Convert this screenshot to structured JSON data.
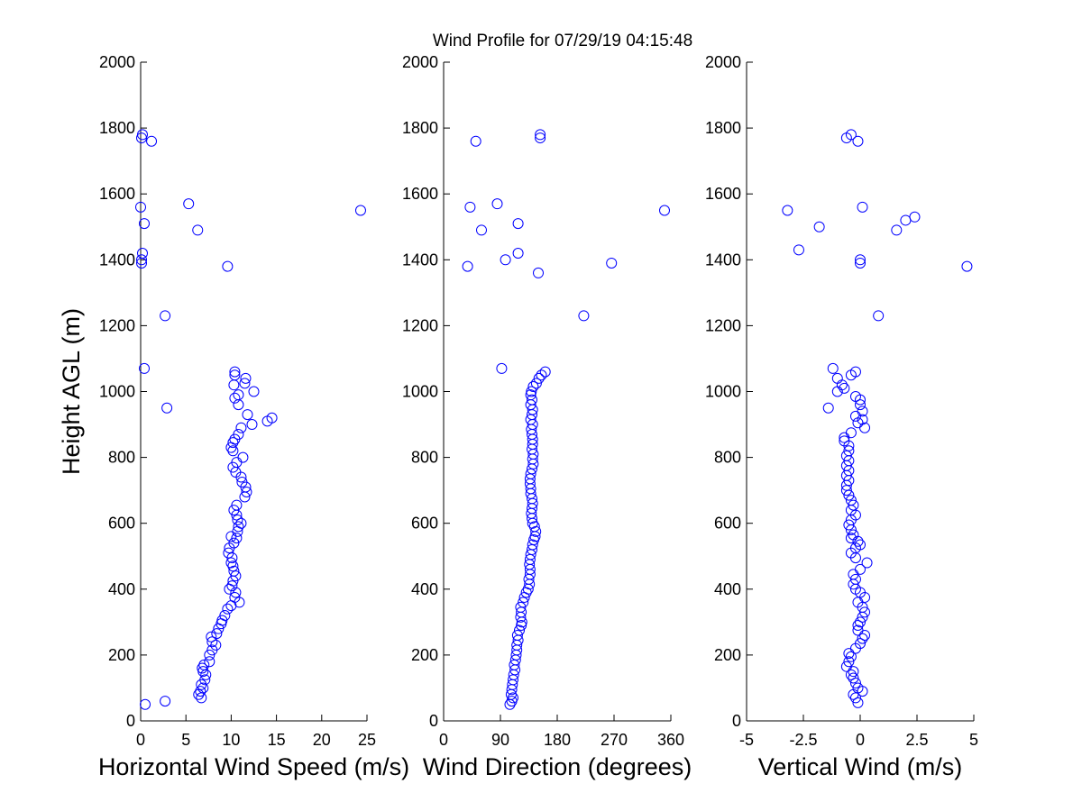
{
  "chart_data": {
    "title": "Wind Profile for  07/29/19 04:15:48",
    "panels": [
      {
        "type": "scatter",
        "xlabel": "Horizontal Wind Speed (m/s)",
        "ylabel": "Height AGL (m)",
        "xlim": [
          0,
          25
        ],
        "ylim": [
          0,
          2000
        ],
        "xticks": [
          0,
          5,
          10,
          15,
          20,
          25
        ],
        "xtick_labels": [
          "0",
          "5",
          "10",
          "15",
          "20",
          "25"
        ],
        "yticks": [
          0,
          200,
          400,
          600,
          800,
          1000,
          1200,
          1400,
          1600,
          1800,
          2000
        ],
        "marker_color": "#0000ff",
        "points": [
          [
            0.5,
            50
          ],
          [
            2.7,
            60
          ],
          [
            6.7,
            70
          ],
          [
            6.4,
            80
          ],
          [
            6.6,
            90
          ],
          [
            6.9,
            100
          ],
          [
            6.7,
            110
          ],
          [
            7.1,
            125
          ],
          [
            7.2,
            140
          ],
          [
            6.9,
            150
          ],
          [
            6.8,
            160
          ],
          [
            7.0,
            170
          ],
          [
            7.6,
            180
          ],
          [
            7.6,
            200
          ],
          [
            7.9,
            215
          ],
          [
            8.3,
            230
          ],
          [
            7.9,
            240
          ],
          [
            7.8,
            255
          ],
          [
            8.4,
            265
          ],
          [
            8.6,
            280
          ],
          [
            8.9,
            295
          ],
          [
            9.0,
            305
          ],
          [
            9.3,
            320
          ],
          [
            9.6,
            340
          ],
          [
            10.0,
            350
          ],
          [
            10.9,
            360
          ],
          [
            10.4,
            375
          ],
          [
            10.5,
            390
          ],
          [
            9.8,
            400
          ],
          [
            10.1,
            410
          ],
          [
            10.2,
            425
          ],
          [
            10.5,
            440
          ],
          [
            10.3,
            455
          ],
          [
            10.2,
            470
          ],
          [
            10.0,
            480
          ],
          [
            10.1,
            495
          ],
          [
            9.7,
            510
          ],
          [
            9.8,
            525
          ],
          [
            10.3,
            540
          ],
          [
            10.6,
            555
          ],
          [
            10.0,
            560
          ],
          [
            10.7,
            575
          ],
          [
            10.8,
            590
          ],
          [
            11.1,
            600
          ],
          [
            10.7,
            610
          ],
          [
            10.6,
            625
          ],
          [
            10.3,
            640
          ],
          [
            10.6,
            655
          ],
          [
            11.5,
            680
          ],
          [
            11.7,
            695
          ],
          [
            11.6,
            710
          ],
          [
            11.2,
            725
          ],
          [
            11.1,
            740
          ],
          [
            10.5,
            755
          ],
          [
            10.2,
            770
          ],
          [
            10.6,
            785
          ],
          [
            11.3,
            800
          ],
          [
            10.2,
            820
          ],
          [
            10.0,
            830
          ],
          [
            10.2,
            845
          ],
          [
            10.4,
            855
          ],
          [
            10.8,
            870
          ],
          [
            11.1,
            890
          ],
          [
            12.3,
            900
          ],
          [
            14.0,
            910
          ],
          [
            14.5,
            920
          ],
          [
            11.8,
            930
          ],
          [
            2.9,
            950
          ],
          [
            10.8,
            960
          ],
          [
            10.4,
            980
          ],
          [
            10.8,
            990
          ],
          [
            12.5,
            1000
          ],
          [
            10.3,
            1020
          ],
          [
            11.5,
            1025
          ],
          [
            11.6,
            1040
          ],
          [
            10.4,
            1050
          ],
          [
            10.4,
            1060
          ],
          [
            0.4,
            1070
          ],
          [
            2.7,
            1230
          ],
          [
            9.6,
            1380
          ],
          [
            0.1,
            1390
          ],
          [
            0.1,
            1400
          ],
          [
            0.2,
            1420
          ],
          [
            6.3,
            1490
          ],
          [
            0.4,
            1510
          ],
          [
            24.3,
            1550
          ],
          [
            0.0,
            1560
          ],
          [
            5.3,
            1570
          ],
          [
            1.2,
            1760
          ],
          [
            0.1,
            1770
          ],
          [
            0.2,
            1780
          ]
        ]
      },
      {
        "type": "scatter",
        "xlabel": "Wind Direction (degrees)",
        "ylabel": "",
        "xlim": [
          0,
          360
        ],
        "ylim": [
          0,
          2000
        ],
        "xticks": [
          0,
          90,
          180,
          270,
          360
        ],
        "xtick_labels": [
          "0",
          "90",
          "180",
          "270",
          "360"
        ],
        "yticks": [
          0,
          200,
          400,
          600,
          800,
          1000,
          1200,
          1400,
          1600,
          1800,
          2000
        ],
        "marker_color": "#0000ff",
        "points": [
          [
            105,
            50
          ],
          [
            108,
            60
          ],
          [
            110,
            70
          ],
          [
            107,
            80
          ],
          [
            108,
            95
          ],
          [
            109,
            110
          ],
          [
            110,
            125
          ],
          [
            111,
            140
          ],
          [
            113,
            155
          ],
          [
            112,
            170
          ],
          [
            114,
            185
          ],
          [
            115,
            200
          ],
          [
            116,
            215
          ],
          [
            116,
            230
          ],
          [
            118,
            245
          ],
          [
            117,
            260
          ],
          [
            120,
            275
          ],
          [
            123,
            290
          ],
          [
            124,
            300
          ],
          [
            122,
            315
          ],
          [
            123,
            330
          ],
          [
            122,
            345
          ],
          [
            126,
            360
          ],
          [
            128,
            375
          ],
          [
            131,
            390
          ],
          [
            134,
            400
          ],
          [
            136,
            415
          ],
          [
            135,
            430
          ],
          [
            137,
            445
          ],
          [
            137,
            460
          ],
          [
            136,
            475
          ],
          [
            137,
            490
          ],
          [
            138,
            505
          ],
          [
            140,
            520
          ],
          [
            141,
            535
          ],
          [
            143,
            550
          ],
          [
            145,
            560
          ],
          [
            146,
            575
          ],
          [
            144,
            590
          ],
          [
            141,
            600
          ],
          [
            140,
            615
          ],
          [
            139,
            630
          ],
          [
            140,
            645
          ],
          [
            141,
            660
          ],
          [
            140,
            675
          ],
          [
            138,
            690
          ],
          [
            138,
            705
          ],
          [
            137,
            720
          ],
          [
            137,
            735
          ],
          [
            138,
            750
          ],
          [
            140,
            765
          ],
          [
            142,
            780
          ],
          [
            141,
            795
          ],
          [
            142,
            810
          ],
          [
            140,
            825
          ],
          [
            141,
            840
          ],
          [
            141,
            855
          ],
          [
            140,
            870
          ],
          [
            139,
            885
          ],
          [
            141,
            900
          ],
          [
            138,
            915
          ],
          [
            140,
            930
          ],
          [
            141,
            945
          ],
          [
            138,
            960
          ],
          [
            140,
            975
          ],
          [
            138,
            990
          ],
          [
            139,
            1000
          ],
          [
            142,
            1015
          ],
          [
            147,
            1025
          ],
          [
            151,
            1040
          ],
          [
            155,
            1050
          ],
          [
            161,
            1060
          ],
          [
            92,
            1070
          ],
          [
            222,
            1230
          ],
          [
            150,
            1360
          ],
          [
            38,
            1380
          ],
          [
            266,
            1390
          ],
          [
            98,
            1400
          ],
          [
            118,
            1420
          ],
          [
            60,
            1490
          ],
          [
            118,
            1510
          ],
          [
            350,
            1550
          ],
          [
            42,
            1560
          ],
          [
            85,
            1570
          ],
          [
            51,
            1760
          ],
          [
            153,
            1770
          ],
          [
            153,
            1780
          ]
        ]
      },
      {
        "type": "scatter",
        "xlabel": "Vertical Wind (m/s)",
        "ylabel": "",
        "xlim": [
          -5,
          5
        ],
        "ylim": [
          0,
          2000
        ],
        "xticks": [
          -5,
          -2.5,
          0,
          2.5,
          5
        ],
        "xtick_labels": [
          "-5",
          "-2.5",
          "0",
          "2.5",
          "5"
        ],
        "yticks": [
          0,
          200,
          400,
          600,
          800,
          1000,
          1200,
          1400,
          1600,
          1800,
          2000
        ],
        "marker_color": "#0000ff",
        "points": [
          [
            -0.1,
            55
          ],
          [
            -0.2,
            70
          ],
          [
            -0.3,
            80
          ],
          [
            0.1,
            90
          ],
          [
            -0.1,
            100
          ],
          [
            -0.2,
            115
          ],
          [
            -0.3,
            130
          ],
          [
            -0.4,
            140
          ],
          [
            -0.3,
            150
          ],
          [
            -0.6,
            165
          ],
          [
            -0.5,
            180
          ],
          [
            -0.4,
            195
          ],
          [
            -0.5,
            205
          ],
          [
            -0.2,
            220
          ],
          [
            0.0,
            235
          ],
          [
            0.1,
            250
          ],
          [
            0.2,
            260
          ],
          [
            -0.1,
            275
          ],
          [
            -0.1,
            290
          ],
          [
            0.0,
            300
          ],
          [
            0.1,
            315
          ],
          [
            0.2,
            330
          ],
          [
            0.1,
            345
          ],
          [
            -0.1,
            360
          ],
          [
            0.2,
            375
          ],
          [
            0.0,
            390
          ],
          [
            -0.2,
            400
          ],
          [
            -0.3,
            415
          ],
          [
            -0.2,
            430
          ],
          [
            -0.3,
            445
          ],
          [
            0.0,
            460
          ],
          [
            0.3,
            480
          ],
          [
            -0.2,
            495
          ],
          [
            -0.4,
            510
          ],
          [
            -0.2,
            525
          ],
          [
            0.0,
            535
          ],
          [
            -0.1,
            545
          ],
          [
            -0.4,
            555
          ],
          [
            -0.3,
            565
          ],
          [
            -0.4,
            580
          ],
          [
            -0.5,
            595
          ],
          [
            -0.4,
            610
          ],
          [
            -0.2,
            625
          ],
          [
            -0.4,
            640
          ],
          [
            -0.3,
            655
          ],
          [
            -0.4,
            670
          ],
          [
            -0.5,
            685
          ],
          [
            -0.6,
            700
          ],
          [
            -0.6,
            715
          ],
          [
            -0.5,
            730
          ],
          [
            -0.6,
            745
          ],
          [
            -0.5,
            760
          ],
          [
            -0.6,
            775
          ],
          [
            -0.5,
            790
          ],
          [
            -0.6,
            805
          ],
          [
            -0.5,
            820
          ],
          [
            -0.5,
            835
          ],
          [
            -0.7,
            850
          ],
          [
            -0.7,
            860
          ],
          [
            -0.4,
            875
          ],
          [
            0.2,
            890
          ],
          [
            -0.1,
            905
          ],
          [
            0.1,
            915
          ],
          [
            -0.2,
            925
          ],
          [
            0.1,
            940
          ],
          [
            -1.4,
            950
          ],
          [
            0.0,
            960
          ],
          [
            0.0,
            975
          ],
          [
            -0.2,
            985
          ],
          [
            -1.0,
            1000
          ],
          [
            -0.7,
            1010
          ],
          [
            -0.8,
            1020
          ],
          [
            -1.0,
            1040
          ],
          [
            -0.4,
            1050
          ],
          [
            -0.2,
            1060
          ],
          [
            -1.2,
            1070
          ],
          [
            0.8,
            1230
          ],
          [
            4.7,
            1380
          ],
          [
            0.0,
            1390
          ],
          [
            0.0,
            1400
          ],
          [
            -2.7,
            1430
          ],
          [
            1.6,
            1490
          ],
          [
            -1.8,
            1500
          ],
          [
            2.0,
            1520
          ],
          [
            2.4,
            1530
          ],
          [
            -3.2,
            1550
          ],
          [
            0.1,
            1560
          ],
          [
            -0.1,
            1760
          ],
          [
            -0.6,
            1770
          ],
          [
            -0.4,
            1780
          ]
        ]
      }
    ]
  }
}
